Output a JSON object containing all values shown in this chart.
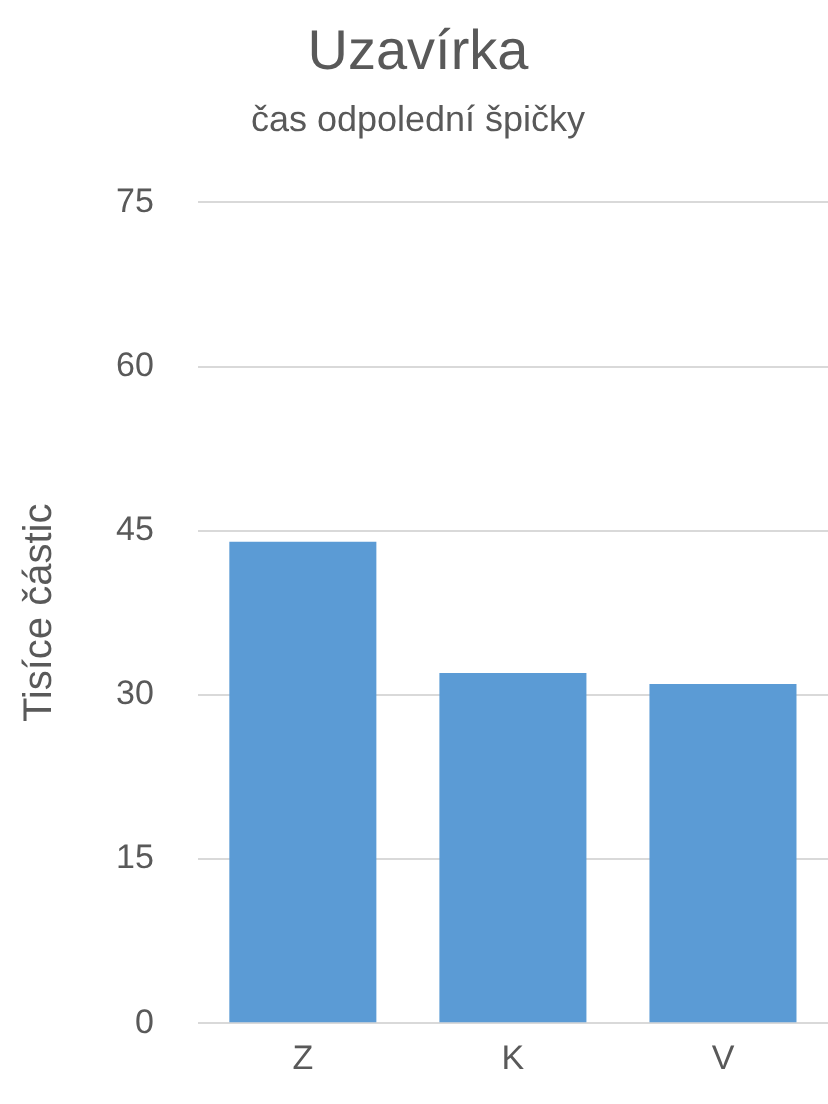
{
  "chart_data": {
    "type": "bar",
    "title": "Uzavírka",
    "subtitle": "čas odpolední špičky",
    "ylabel": "Tisíce částic",
    "categories": [
      "Z",
      "K",
      "V"
    ],
    "values": [
      44,
      32,
      31
    ],
    "color": "#5b9bd5",
    "ylim": [
      0,
      75
    ],
    "yticks": [
      0,
      15,
      30,
      45,
      60,
      75
    ],
    "grid": "y"
  }
}
